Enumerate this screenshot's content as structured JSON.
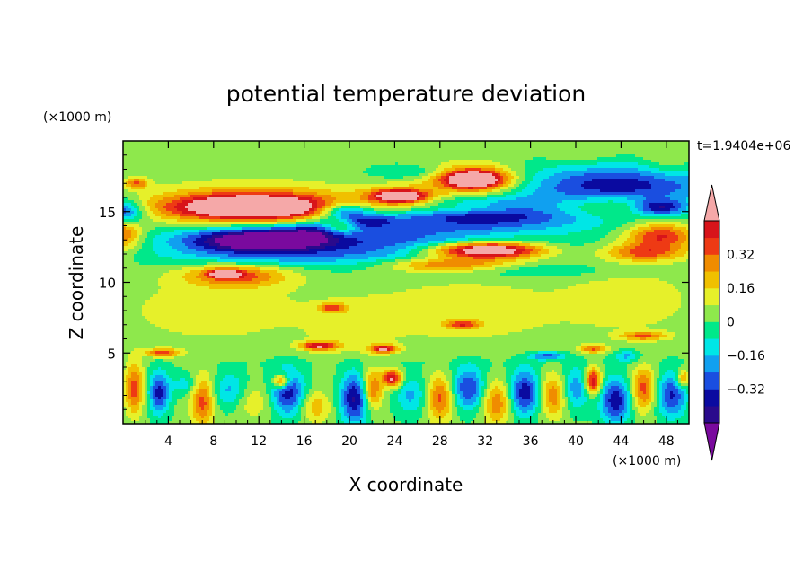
{
  "chart_data": {
    "type": "heatmap",
    "title": "potential temperature deviation",
    "xlabel": "X coordinate",
    "ylabel": "Z coordinate",
    "x_unit_label": "(×1000 m)",
    "y_unit_label": "(×1000 m)",
    "time_label": "t=1.9404e+06",
    "xlim": [
      0,
      50
    ],
    "ylim": [
      0,
      20
    ],
    "x_ticks": [
      4,
      8,
      12,
      16,
      20,
      24,
      28,
      32,
      36,
      40,
      44,
      48
    ],
    "y_ticks": [
      5,
      10,
      15
    ],
    "colorbar": {
      "levels": [
        -0.48,
        -0.4,
        -0.32,
        -0.24,
        -0.16,
        -0.08,
        0,
        0.08,
        0.16,
        0.24,
        0.32,
        0.4,
        0.48
      ],
      "tick_values": [
        0.32,
        0.16,
        0,
        -0.16,
        -0.32
      ],
      "tick_labels": [
        "0.32",
        "0.16",
        "0",
        "−0.16",
        "−0.32"
      ],
      "colors": [
        "#7a0a9e",
        "#2a0a8c",
        "#0a0aa0",
        "#1a4ee0",
        "#10a0f0",
        "#00e6e6",
        "#00e88a",
        "#8ee84c",
        "#e6f02a",
        "#f0c000",
        "#f08c00",
        "#ee3a14",
        "#d8141a",
        "#f5a8a8"
      ]
    },
    "background_level": 0.02,
    "features": [
      {
        "x": 0,
        "z": 14.9,
        "rx": 1.8,
        "rz": 0.9,
        "v": -0.45
      },
      {
        "x": 0,
        "z": 13.5,
        "rx": 1.6,
        "rz": 1.2,
        "v": 0.36
      },
      {
        "x": 1.2,
        "z": 17.0,
        "rx": 1.0,
        "rz": 0.4,
        "v": 0.3
      },
      {
        "x": 11.5,
        "z": 15.3,
        "rx": 9.0,
        "rz": 1.5,
        "v": 0.36
      },
      {
        "x": 11.5,
        "z": 15.3,
        "rx": 7.0,
        "rz": 0.85,
        "v": 0.5
      },
      {
        "x": 12.5,
        "z": 13.0,
        "rx": 9.0,
        "rz": 1.4,
        "v": -0.33
      },
      {
        "x": 12.5,
        "z": 13.0,
        "rx": 6.0,
        "rz": 0.7,
        "v": -0.45
      },
      {
        "x": 14.0,
        "z": 11.8,
        "rx": 11.0,
        "rz": 0.8,
        "v": -0.12
      },
      {
        "x": 19.5,
        "z": 15.0,
        "rx": 2.2,
        "rz": 0.6,
        "v": -0.4
      },
      {
        "x": 19.2,
        "z": 14.0,
        "rx": 1.6,
        "rz": 0.7,
        "v": 0.32
      },
      {
        "x": 21.0,
        "z": 14.3,
        "rx": 3.5,
        "rz": 0.5,
        "v": -0.3
      },
      {
        "x": 17.0,
        "z": 13.6,
        "rx": 3.5,
        "rz": 0.6,
        "v": -0.2
      },
      {
        "x": 24.5,
        "z": 16.0,
        "rx": 3.5,
        "rz": 0.8,
        "v": 0.3
      },
      {
        "x": 24.5,
        "z": 16.1,
        "rx": 2.2,
        "rz": 0.4,
        "v": 0.5
      },
      {
        "x": 31.0,
        "z": 17.2,
        "rx": 4.0,
        "rz": 1.2,
        "v": 0.36
      },
      {
        "x": 31.0,
        "z": 17.3,
        "rx": 2.6,
        "rz": 0.6,
        "v": 0.5
      },
      {
        "x": 25.5,
        "z": 17.8,
        "rx": 3.5,
        "rz": 0.5,
        "v": -0.12
      },
      {
        "x": 32.0,
        "z": 14.8,
        "rx": 9.0,
        "rz": 1.2,
        "v": -0.4
      },
      {
        "x": 30.0,
        "z": 15.2,
        "rx": 5.0,
        "rz": 0.4,
        "v": 0.18
      },
      {
        "x": 44.0,
        "z": 16.6,
        "rx": 9.0,
        "rz": 1.9,
        "v": -0.42
      },
      {
        "x": 44.0,
        "z": 15.4,
        "rx": 7.5,
        "rz": 0.9,
        "v": 0.34
      },
      {
        "x": 47.5,
        "z": 15.3,
        "rx": 2.5,
        "rz": 0.6,
        "v": -0.45
      },
      {
        "x": 47.5,
        "z": 13.3,
        "rx": 3.0,
        "rz": 0.9,
        "v": 0.4
      },
      {
        "x": 46.0,
        "z": 12.1,
        "rx": 3.5,
        "rz": 0.6,
        "v": 0.3
      },
      {
        "x": 48.0,
        "z": 18.5,
        "rx": 2.5,
        "rz": 1.2,
        "v": 0.14
      },
      {
        "x": 41.0,
        "z": 19.0,
        "rx": 4.0,
        "rz": 1.0,
        "v": 0.1
      },
      {
        "x": 26.5,
        "z": 12.5,
        "rx": 7.0,
        "rz": 1.3,
        "v": -0.32
      },
      {
        "x": 32.0,
        "z": 12.1,
        "rx": 8.0,
        "rz": 0.9,
        "v": 0.34
      },
      {
        "x": 32.0,
        "z": 12.3,
        "rx": 5.0,
        "rz": 0.5,
        "v": 0.5
      },
      {
        "x": 28.0,
        "z": 11.2,
        "rx": 5.0,
        "rz": 0.5,
        "v": 0.3
      },
      {
        "x": 38.0,
        "z": 12.2,
        "rx": 5.0,
        "rz": 1.0,
        "v": -0.18
      },
      {
        "x": 36.0,
        "z": 10.8,
        "rx": 8.0,
        "rz": 0.5,
        "v": -0.1
      },
      {
        "x": 10.0,
        "z": 10.5,
        "rx": 4.5,
        "rz": 0.8,
        "v": 0.34
      },
      {
        "x": 9.0,
        "z": 10.6,
        "rx": 1.3,
        "rz": 0.25,
        "v": 0.5
      },
      {
        "x": 8.0,
        "z": 8.0,
        "rx": 9.0,
        "rz": 2.5,
        "v": 0.1
      },
      {
        "x": 30.0,
        "z": 8.0,
        "rx": 9.0,
        "rz": 2.5,
        "v": 0.11
      },
      {
        "x": 45.0,
        "z": 8.8,
        "rx": 6.0,
        "rz": 2.5,
        "v": 0.1
      },
      {
        "x": 20.0,
        "z": 6.5,
        "rx": 3.5,
        "rz": 2.0,
        "v": 0.08
      },
      {
        "x": 18.5,
        "z": 8.2,
        "rx": 1.2,
        "rz": 0.3,
        "v": 0.32
      },
      {
        "x": 30.0,
        "z": 7.0,
        "rx": 1.5,
        "rz": 0.3,
        "v": 0.3
      },
      {
        "x": 17.3,
        "z": 5.5,
        "rx": 1.6,
        "rz": 0.3,
        "v": 0.45
      },
      {
        "x": 23.0,
        "z": 5.3,
        "rx": 1.2,
        "rz": 0.3,
        "v": 0.45
      },
      {
        "x": 3.5,
        "z": 5.0,
        "rx": 1.5,
        "rz": 0.3,
        "v": 0.34
      },
      {
        "x": 46.0,
        "z": 6.2,
        "rx": 2.0,
        "rz": 0.3,
        "v": 0.3
      },
      {
        "x": 37.5,
        "z": 4.8,
        "rx": 1.5,
        "rz": 0.3,
        "v": -0.3
      },
      {
        "x": 41.5,
        "z": 5.3,
        "rx": 1.2,
        "rz": 0.3,
        "v": 0.3
      },
      {
        "x": 44.5,
        "z": 4.8,
        "rx": 1.2,
        "rz": 0.4,
        "v": -0.2
      },
      {
        "x": 25.0,
        "z": 4.3,
        "rx": 25.0,
        "rz": 0.45,
        "v": -0.03
      },
      {
        "x": 1.0,
        "z": 2.5,
        "rx": 0.8,
        "rz": 1.8,
        "v": 0.34
      },
      {
        "x": 3.2,
        "z": 2.2,
        "rx": 0.9,
        "rz": 1.5,
        "v": -0.38
      },
      {
        "x": 7.0,
        "z": 1.6,
        "rx": 1.0,
        "rz": 1.8,
        "v": 0.34
      },
      {
        "x": 5.5,
        "z": 2.8,
        "rx": 1.2,
        "rz": 0.8,
        "v": -0.15
      },
      {
        "x": 9.5,
        "z": 2.3,
        "rx": 1.5,
        "rz": 1.3,
        "v": -0.22
      },
      {
        "x": 11.5,
        "z": 1.6,
        "rx": 2.0,
        "rz": 1.2,
        "v": 0.14
      },
      {
        "x": 14.5,
        "z": 2.2,
        "rx": 1.5,
        "rz": 1.6,
        "v": -0.4
      },
      {
        "x": 14.0,
        "z": 3.0,
        "rx": 0.7,
        "rz": 0.5,
        "v": 0.45
      },
      {
        "x": 17.0,
        "z": 1.2,
        "rx": 1.3,
        "rz": 1.1,
        "v": 0.2
      },
      {
        "x": 20.5,
        "z": 1.8,
        "rx": 1.3,
        "rz": 1.8,
        "v": -0.44
      },
      {
        "x": 22.0,
        "z": 2.4,
        "rx": 0.9,
        "rz": 1.4,
        "v": 0.36
      },
      {
        "x": 23.8,
        "z": 3.2,
        "rx": 0.8,
        "rz": 0.6,
        "v": 0.5
      },
      {
        "x": 25.5,
        "z": 2.0,
        "rx": 1.5,
        "rz": 1.4,
        "v": -0.2
      },
      {
        "x": 28.0,
        "z": 1.8,
        "rx": 1.2,
        "rz": 1.6,
        "v": 0.34
      },
      {
        "x": 30.5,
        "z": 2.5,
        "rx": 1.5,
        "rz": 1.5,
        "v": -0.35
      },
      {
        "x": 33.0,
        "z": 1.5,
        "rx": 1.3,
        "rz": 1.5,
        "v": 0.3
      },
      {
        "x": 35.5,
        "z": 2.2,
        "rx": 1.4,
        "rz": 1.6,
        "v": -0.4
      },
      {
        "x": 38.0,
        "z": 2.0,
        "rx": 1.2,
        "rz": 1.5,
        "v": 0.3
      },
      {
        "x": 40.0,
        "z": 2.5,
        "rx": 1.3,
        "rz": 1.5,
        "v": -0.25
      },
      {
        "x": 41.5,
        "z": 3.0,
        "rx": 0.7,
        "rz": 0.9,
        "v": 0.5
      },
      {
        "x": 43.5,
        "z": 1.6,
        "rx": 1.3,
        "rz": 1.6,
        "v": -0.4
      },
      {
        "x": 46.0,
        "z": 2.5,
        "rx": 1.0,
        "rz": 1.5,
        "v": 0.34
      },
      {
        "x": 48.5,
        "z": 2.0,
        "rx": 1.3,
        "rz": 1.6,
        "v": -0.35
      },
      {
        "x": 49.5,
        "z": 3.2,
        "rx": 0.6,
        "rz": 0.6,
        "v": 0.3
      }
    ]
  }
}
